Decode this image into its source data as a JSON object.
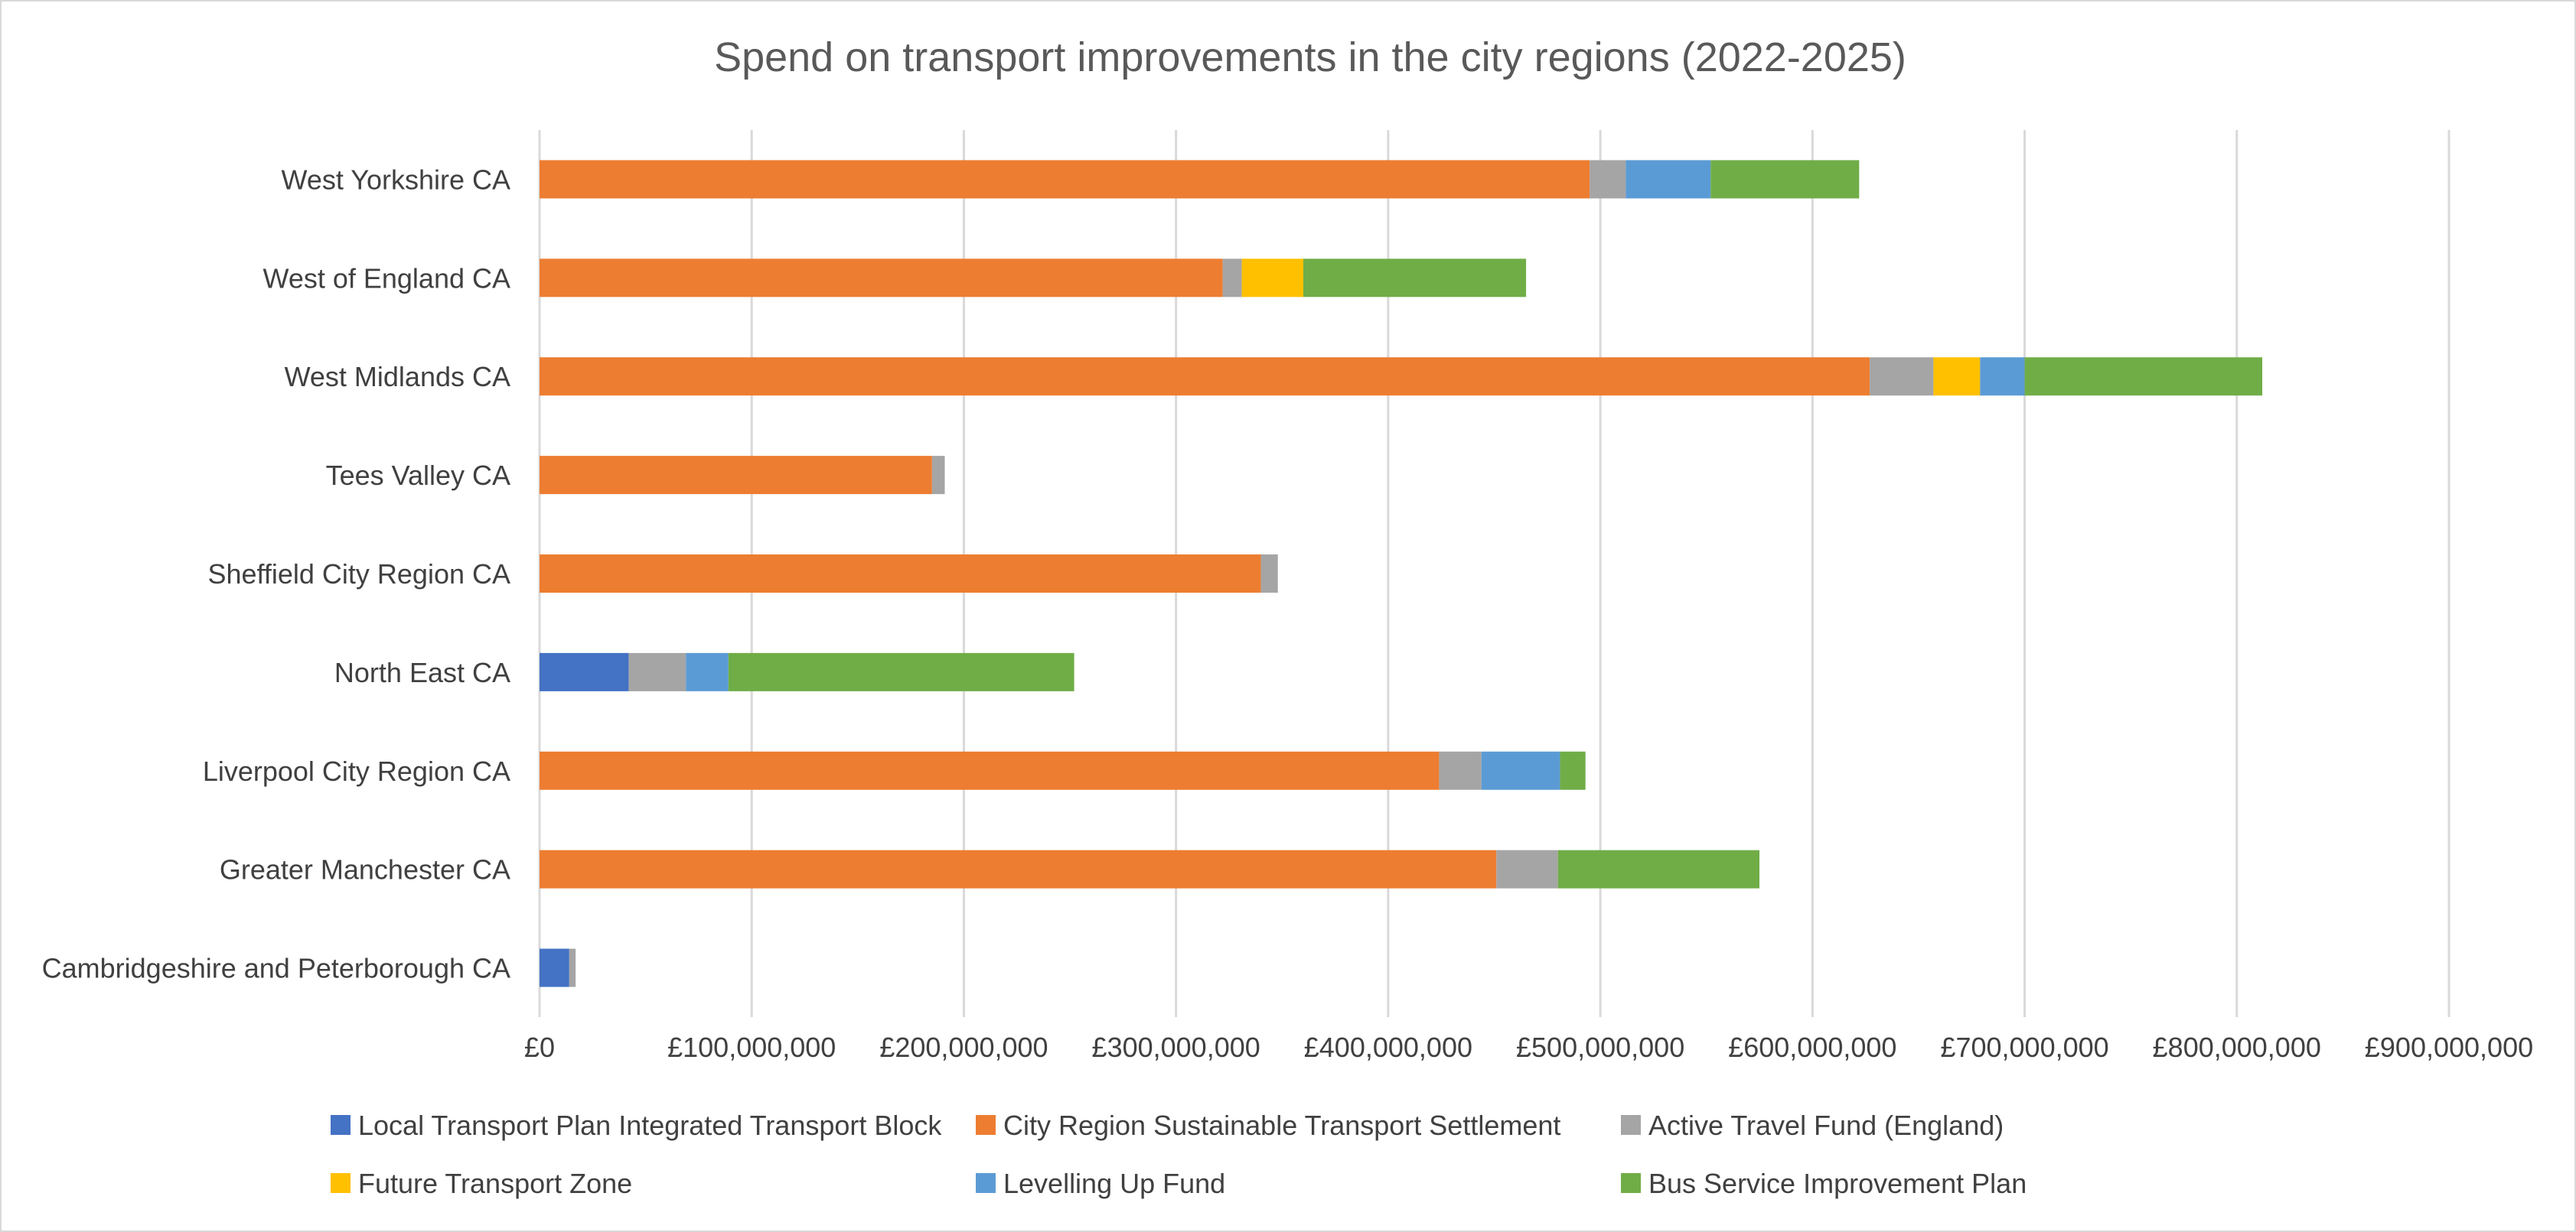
{
  "chart_data": {
    "type": "bar",
    "orientation": "horizontal",
    "stacked": true,
    "title": "Spend on transport improvements in the city regions (2022-2025)",
    "xlabel": "",
    "ylabel": "",
    "xlim": [
      0,
      900000000
    ],
    "x_ticks": [
      0,
      100000000,
      200000000,
      300000000,
      400000000,
      500000000,
      600000000,
      700000000,
      800000000,
      900000000
    ],
    "x_tick_labels": [
      "£0",
      "£100,000,000",
      "£200,000,000",
      "£300,000,000",
      "£400,000,000",
      "£500,000,000",
      "£600,000,000",
      "£700,000,000",
      "£800,000,000",
      "£900,000,000"
    ],
    "grid": true,
    "legend_position": "bottom",
    "categories": [
      "West Yorkshire CA",
      "West of England CA",
      "West Midlands CA",
      "Tees Valley CA",
      "Sheffield City Region CA",
      "North East CA",
      "Liverpool City Region CA",
      "Greater Manchester CA",
      "Cambridgeshire and Peterborough CA"
    ],
    "series": [
      {
        "name": "Local Transport Plan Integrated Transport Block",
        "color": "#4472C4",
        "values": [
          0,
          0,
          0,
          0,
          0,
          42000000,
          0,
          0,
          14000000
        ]
      },
      {
        "name": "City Region Sustainable Transport Settlement",
        "color": "#ED7D31",
        "values": [
          495000000,
          322000000,
          627000000,
          185000000,
          340000000,
          0,
          424000000,
          451000000,
          0
        ]
      },
      {
        "name": "Active Travel Fund (England)",
        "color": "#A5A5A5",
        "values": [
          17000000,
          9000000,
          30000000,
          6000000,
          8000000,
          27000000,
          20000000,
          29000000,
          3000000
        ]
      },
      {
        "name": "Future Transport Zone",
        "color": "#FFC000",
        "values": [
          0,
          29000000,
          22000000,
          0,
          0,
          0,
          0,
          0,
          0
        ]
      },
      {
        "name": "Levelling Up Fund",
        "color": "#5B9BD5",
        "values": [
          40000000,
          0,
          21000000,
          0,
          0,
          20000000,
          37000000,
          0,
          0
        ]
      },
      {
        "name": "Bus Service Improvement Plan",
        "color": "#70AD47",
        "values": [
          70000000,
          105000000,
          112000000,
          0,
          0,
          163000000,
          12000000,
          95000000,
          0
        ]
      }
    ]
  }
}
